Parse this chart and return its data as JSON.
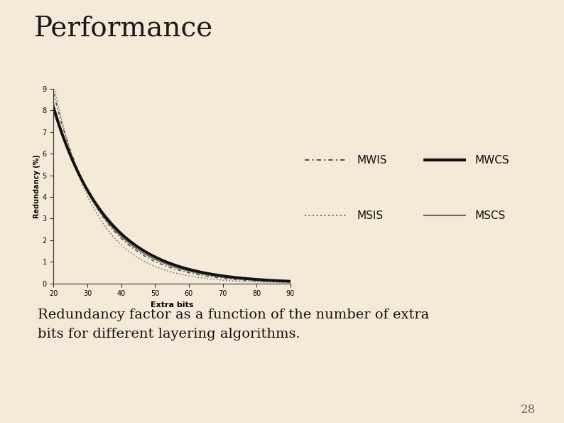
{
  "bg_color": "#f5ead8",
  "title": "Performance",
  "title_color": "#1a1a1a",
  "title_fontsize": 28,
  "red_line_color": "#aa0000",
  "caption": "Redundancy factor as a function of the number of extra\nbits for different layering algorithms.",
  "caption_fontsize": 14,
  "page_number": "28",
  "xlabel": "Extra bits",
  "ylabel": "Redundancy (%)",
  "xlim": [
    20,
    90
  ],
  "ylim": [
    0,
    9
  ],
  "xticks": [
    20,
    30,
    40,
    50,
    60,
    70,
    80,
    90
  ],
  "yticks": [
    0,
    1,
    2,
    3,
    4,
    5,
    6,
    7,
    8,
    9
  ],
  "plot_bg_color": "#f5ead8",
  "curves": {
    "MWIS": {
      "a": 8.8,
      "b": 0.072,
      "linestyle": "dashdot",
      "color": "#555555",
      "linewidth": 1.2
    },
    "MWCS": {
      "a": 8.1,
      "b": 0.063,
      "linestyle": "solid",
      "color": "#111111",
      "linewidth": 2.8
    },
    "MSIS": {
      "a": 9.2,
      "b": 0.082,
      "linestyle": "dotted",
      "color": "#777777",
      "linewidth": 1.2
    },
    "MSCS": {
      "a": 8.3,
      "b": 0.067,
      "linestyle": "solid",
      "color": "#666666",
      "linewidth": 1.2
    }
  }
}
